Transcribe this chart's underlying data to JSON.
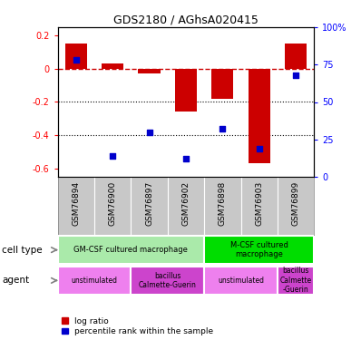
{
  "title": "GDS2180 / AGhsA020415",
  "samples": [
    "GSM76894",
    "GSM76900",
    "GSM76897",
    "GSM76902",
    "GSM76898",
    "GSM76903",
    "GSM76899"
  ],
  "log_ratio": [
    0.15,
    0.03,
    -0.03,
    -0.26,
    -0.18,
    -0.57,
    0.15
  ],
  "percentile_rank": [
    78,
    14,
    30,
    12,
    32,
    19,
    68
  ],
  "ylim_left": [
    -0.65,
    0.25
  ],
  "ylim_right": [
    0,
    100
  ],
  "yticks_left": [
    -0.6,
    -0.4,
    -0.2,
    0.0,
    0.2
  ],
  "yticks_right": [
    0,
    25,
    50,
    75,
    100
  ],
  "bar_color": "#cc0000",
  "dot_color": "#0000cc",
  "cell_type_groups": [
    {
      "label": "GM-CSF cultured macrophage",
      "start": 0,
      "end": 4,
      "color": "#aaeaaa"
    },
    {
      "label": "M-CSF cultured\nmacrophage",
      "start": 4,
      "end": 7,
      "color": "#00dd00"
    }
  ],
  "agent_groups": [
    {
      "label": "unstimulated",
      "start": 0,
      "end": 2,
      "color": "#ee80ee"
    },
    {
      "label": "bacillus\nCalmette-Guerin",
      "start": 2,
      "end": 4,
      "color": "#cc44cc"
    },
    {
      "label": "unstimulated",
      "start": 4,
      "end": 6,
      "color": "#ee80ee"
    },
    {
      "label": "bacillus\nCalmette\n-Guerin",
      "start": 6,
      "end": 7,
      "color": "#cc44cc"
    }
  ],
  "legend_items": [
    {
      "label": "log ratio",
      "color": "#cc0000"
    },
    {
      "label": "percentile rank within the sample",
      "color": "#0000cc"
    }
  ],
  "cell_type_label": "cell type",
  "agent_label": "agent",
  "sample_bg": "#c8c8c8"
}
